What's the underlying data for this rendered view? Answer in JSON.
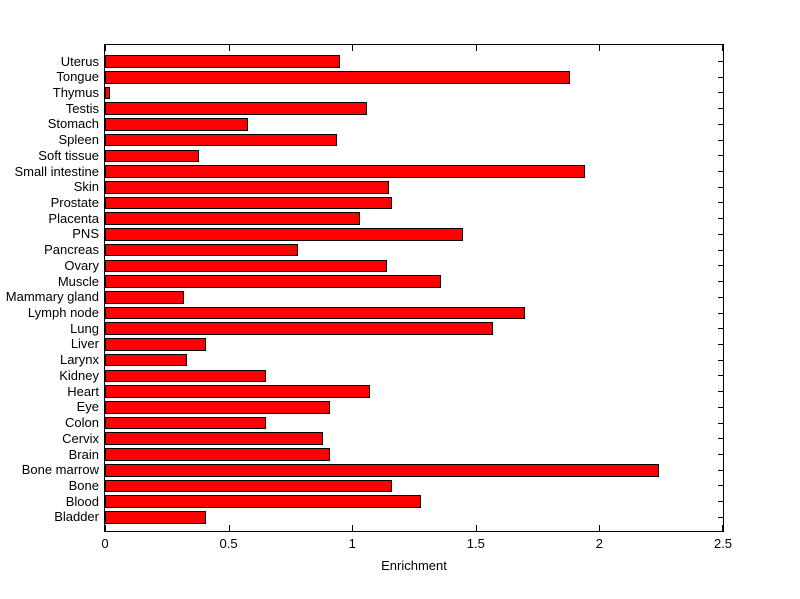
{
  "chart_data": {
    "type": "bar",
    "orientation": "horizontal",
    "title": "",
    "xlabel": "Enrichment",
    "ylabel": "",
    "xlim": [
      0,
      2.5
    ],
    "xticks": [
      0,
      0.5,
      1,
      1.5,
      2,
      2.5
    ],
    "xtick_labels": [
      "0",
      "0.5",
      "1",
      "1.5",
      "2",
      "2.5"
    ],
    "grid": false,
    "legend": null,
    "bar_color": "#ff0000",
    "bar_edge_color": "#000000",
    "axis_color": "#000000",
    "background_color": "#ffffff",
    "categories": [
      "Uterus",
      "Tongue",
      "Thymus",
      "Testis",
      "Stomach",
      "Spleen",
      "Soft tissue",
      "Small intestine",
      "Skin",
      "Prostate",
      "Placenta",
      "PNS",
      "Pancreas",
      "Ovary",
      "Muscle",
      "Mammary gland",
      "Lymph node",
      "Lung",
      "Liver",
      "Larynx",
      "Kidney",
      "Heart",
      "Eye",
      "Colon",
      "Cervix",
      "Brain",
      "Bone marrow",
      "Bone",
      "Blood",
      "Bladder"
    ],
    "values": [
      0.95,
      1.88,
      0.02,
      1.06,
      0.58,
      0.94,
      0.38,
      1.94,
      1.15,
      1.16,
      1.03,
      1.45,
      0.78,
      1.14,
      1.36,
      0.32,
      1.7,
      1.57,
      0.41,
      0.33,
      0.65,
      1.07,
      0.91,
      0.65,
      0.88,
      0.91,
      2.24,
      1.16,
      1.28,
      0.41
    ]
  }
}
